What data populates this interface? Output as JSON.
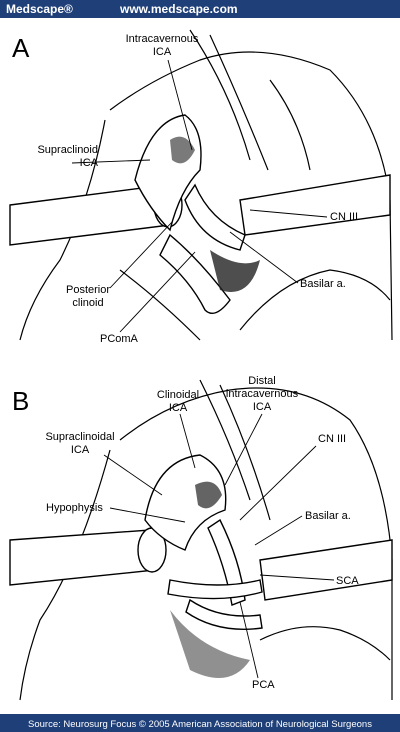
{
  "header": {
    "logo": "Medscape®",
    "url": "www.medscape.com"
  },
  "panel_a": {
    "letter": "A",
    "labels": [
      {
        "lines": [
          "Intracavernous",
          "ICA"
        ]
      },
      {
        "lines": [
          "Supraclinoid",
          "ICA"
        ]
      },
      {
        "lines": [
          "CN III"
        ]
      },
      {
        "lines": [
          "Basilar a."
        ]
      },
      {
        "lines": [
          "Posterior",
          "clinoid"
        ]
      },
      {
        "lines": [
          "PComA"
        ]
      }
    ]
  },
  "panel_b": {
    "letter": "B",
    "labels": [
      {
        "lines": [
          "Clinoidal",
          "ICA"
        ]
      },
      {
        "lines": [
          "Distal",
          "intracavernous",
          "ICA"
        ]
      },
      {
        "lines": [
          "Supraclinoidal",
          "ICA"
        ]
      },
      {
        "lines": [
          "CN III"
        ]
      },
      {
        "lines": [
          "Hypophysis"
        ]
      },
      {
        "lines": [
          "Basilar a."
        ]
      },
      {
        "lines": [
          "SCA"
        ]
      },
      {
        "lines": [
          "PCA"
        ]
      }
    ]
  },
  "footer": {
    "source": "Source: Neurosurg Focus © 2005 American Association of Neurological Surgeons"
  }
}
